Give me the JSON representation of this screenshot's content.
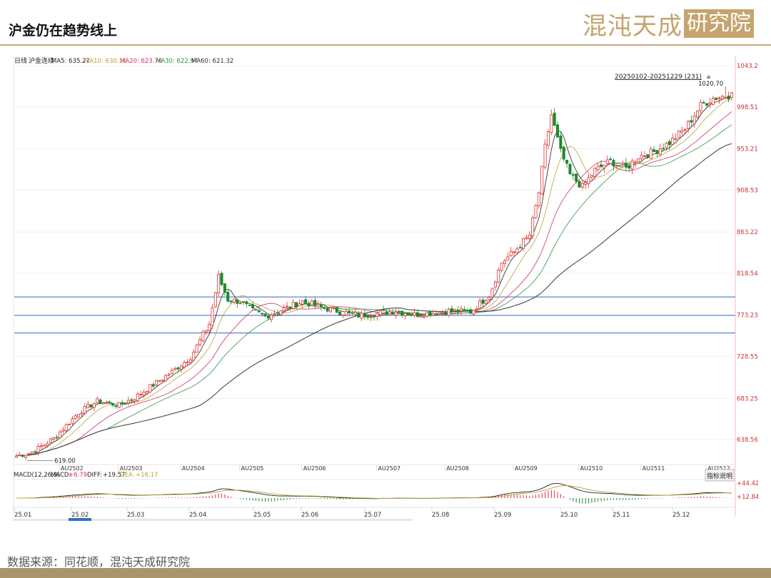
{
  "page": {
    "title": "沪金仍在趋势线上",
    "logo_left": "混沌天成",
    "logo_box": "研究院",
    "source": "数据来源：同花顺，混沌天成研究院"
  },
  "chart_data": {
    "type": "candlestick",
    "period_label": "日线",
    "instrument": "沪金连续",
    "range_label": "20250102-20251229 (231)",
    "ma_legend": [
      {
        "name": "MA5",
        "value": "635.27",
        "color": "#222222"
      },
      {
        "name": "MA10",
        "value": "630.16",
        "color": "#b8a23a"
      },
      {
        "name": "MA20",
        "value": "623.76",
        "color": "#d0306a"
      },
      {
        "name": "MA30",
        "value": "622.97",
        "color": "#2e9a3e"
      },
      {
        "name": "MA60",
        "value": "621.32",
        "color": "#333333"
      }
    ],
    "y_ticks": [
      "1043.20",
      "998.51",
      "953.21",
      "908.53",
      "863.22",
      "818.54",
      "773.23",
      "728.55",
      "683.25",
      "638.56"
    ],
    "ylim": [
      614.0,
      1043.2
    ],
    "contract_labels": [
      "AU2502",
      "AU2503",
      "AU2504",
      "AU2505",
      "AU2506",
      "AU2507",
      "AU2508",
      "AU2509",
      "AU2510",
      "AU2511",
      "AU2512"
    ],
    "date_labels": [
      "25.01",
      "25.02",
      "25.03",
      "25.04",
      "25.05",
      "25.06",
      "25.07",
      "25.08",
      "25.09",
      "25.10",
      "25.11",
      "25.12"
    ],
    "h_lines": [
      793,
      773,
      754
    ],
    "annotations": {
      "high": "1020.70",
      "low": "619.00"
    },
    "macd": {
      "label": "MACD(12,26,9)",
      "macd_label": "MACD:",
      "macd_value": "+6.79",
      "diff_label": "DIFF:",
      "diff_value": "+19.57",
      "dea_label": "DEA:",
      "dea_value": "+16.17",
      "ticks": [
        "+44.42",
        "+12.84"
      ],
      "button": "指标说明"
    },
    "anchors": [
      [
        0,
        621
      ],
      [
        5,
        625
      ],
      [
        12,
        640
      ],
      [
        20,
        668
      ],
      [
        26,
        680
      ],
      [
        33,
        676
      ],
      [
        38,
        684
      ],
      [
        44,
        698
      ],
      [
        50,
        712
      ],
      [
        56,
        728
      ],
      [
        62,
        764
      ],
      [
        65,
        815
      ],
      [
        68,
        790
      ],
      [
        72,
        788
      ],
      [
        76,
        778
      ],
      [
        80,
        772
      ],
      [
        86,
        780
      ],
      [
        92,
        788
      ],
      [
        98,
        782
      ],
      [
        104,
        777
      ],
      [
        110,
        773
      ],
      [
        116,
        775
      ],
      [
        122,
        778
      ],
      [
        128,
        774
      ],
      [
        134,
        776
      ],
      [
        140,
        778
      ],
      [
        146,
        777
      ],
      [
        152,
        795
      ],
      [
        156,
        830
      ],
      [
        160,
        842
      ],
      [
        165,
        860
      ],
      [
        168,
        906
      ],
      [
        170,
        955
      ],
      [
        172,
        990
      ],
      [
        175,
        950
      ],
      [
        178,
        925
      ],
      [
        182,
        912
      ],
      [
        186,
        930
      ],
      [
        191,
        940
      ],
      [
        196,
        932
      ],
      [
        200,
        945
      ],
      [
        205,
        950
      ],
      [
        210,
        960
      ],
      [
        215,
        975
      ],
      [
        220,
        1000
      ],
      [
        224,
        1008
      ],
      [
        230,
        1012
      ]
    ]
  }
}
